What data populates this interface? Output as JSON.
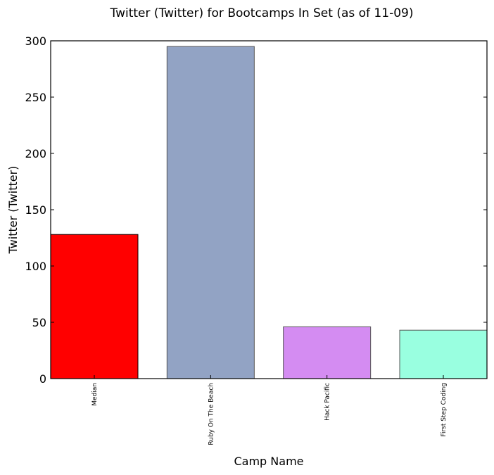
{
  "chart_data": {
    "type": "bar",
    "title": "Twitter (Twitter) for Bootcamps In Set (as of 11-09)",
    "xlabel": "Camp Name",
    "ylabel": "Twitter (Twitter)",
    "ylim": [
      0,
      300
    ],
    "yticks": [
      0,
      50,
      100,
      150,
      200,
      250,
      300
    ],
    "categories": [
      "Median",
      "Ruby On The Beach",
      "Hack Pacific",
      "First Step Coding"
    ],
    "values": [
      128,
      295,
      46,
      43
    ],
    "colors": [
      "#ff0000",
      "#92a3c4",
      "#d48cf2",
      "#99ffe0"
    ],
    "grid": false,
    "legend": "none"
  }
}
